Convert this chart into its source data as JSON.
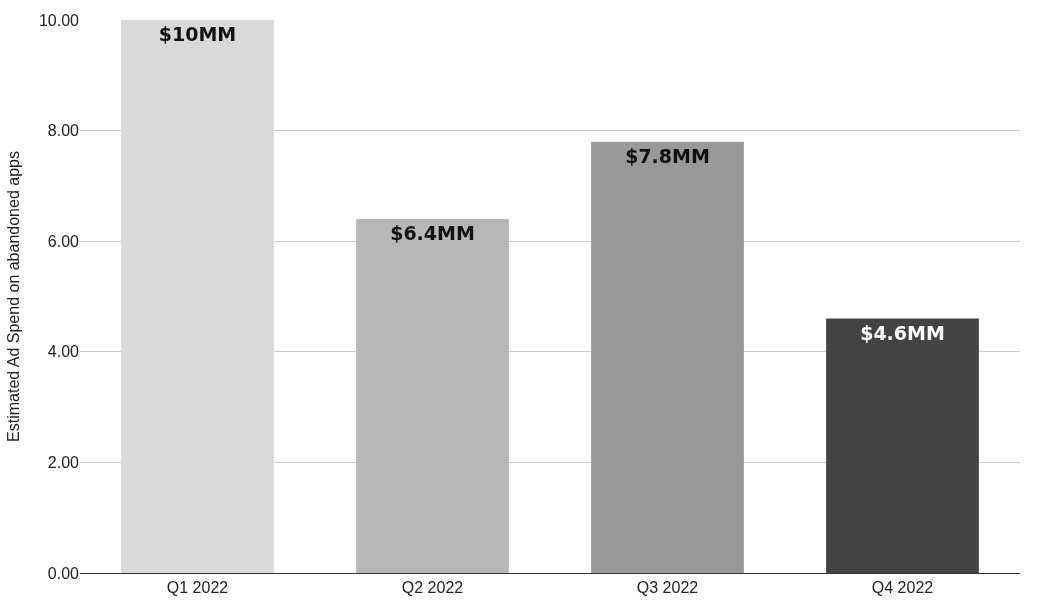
{
  "chart_data": {
    "type": "bar",
    "ylabel": "Estimated Ad Spend on abandoned apps",
    "categories": [
      "Q1 2022",
      "Q2 2022",
      "Q3 2022",
      "Q4 2022"
    ],
    "values": [
      10,
      6.4,
      7.8,
      4.6
    ],
    "colors": [
      "#d9d9d9",
      "#b7b7b7",
      "#999999",
      "#434343"
    ],
    "value_labels": [
      "$10MM",
      "$6.4MM",
      "$7.8MM",
      "$4.6MM"
    ],
    "ylim": [
      0,
      10
    ],
    "yticks": [
      {
        "value": 0,
        "label": "0.00"
      },
      {
        "value": 2,
        "label": "2.00"
      },
      {
        "value": 4,
        "label": "4.00"
      },
      {
        "value": 6,
        "label": "6.00"
      },
      {
        "value": 8,
        "label": "8.00"
      },
      {
        "value": 10,
        "label": "10.00"
      }
    ],
    "grid": "y"
  }
}
